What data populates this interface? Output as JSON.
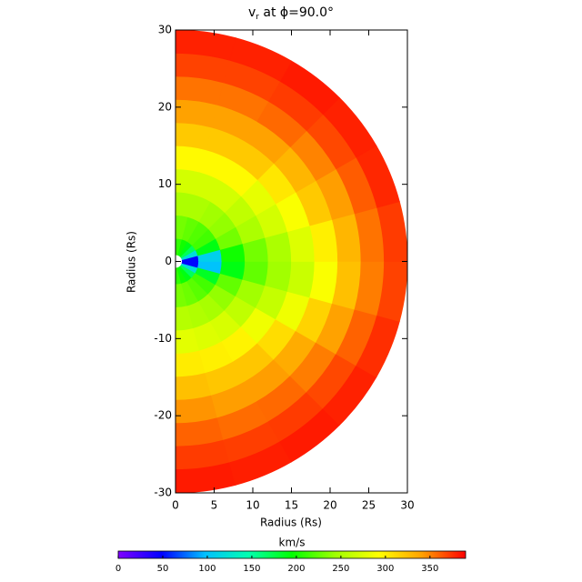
{
  "chart_data": {
    "type": "polar-heatmap",
    "title": {
      "text": "v",
      "subscript": "r",
      "rest": " at ϕ=90.0°"
    },
    "x_label": "Radius (Rs)",
    "y_label": "Radius (Rs)",
    "xlim": [
      0,
      30
    ],
    "xticks": [
      0,
      5,
      10,
      15,
      20,
      25,
      30
    ],
    "ylim": [
      -30,
      30
    ],
    "yticks": [
      -30,
      -20,
      -10,
      0,
      10,
      20,
      30
    ],
    "r_edges": [
      0,
      3,
      6,
      9,
      12,
      15,
      18,
      21,
      24,
      27,
      30
    ],
    "theta_edges": [
      -90,
      -75,
      -60,
      -45,
      -30,
      -15,
      0,
      15,
      30,
      45,
      60,
      75,
      90
    ],
    "values": [
      [
        210,
        232,
        255,
        278,
        302,
        325,
        345,
        360,
        372,
        382
      ],
      [
        200,
        228,
        252,
        275,
        300,
        322,
        342,
        357,
        371,
        381
      ],
      [
        190,
        222,
        248,
        272,
        298,
        322,
        342,
        358,
        372,
        382
      ],
      [
        170,
        215,
        240,
        260,
        285,
        310,
        335,
        352,
        368,
        380
      ],
      [
        120,
        185,
        225,
        245,
        262,
        285,
        315,
        340,
        360,
        376
      ],
      [
        50,
        100,
        190,
        225,
        245,
        265,
        290,
        325,
        352,
        370
      ],
      [
        50,
        110,
        200,
        230,
        250,
        275,
        300,
        330,
        355,
        372
      ],
      [
        120,
        190,
        230,
        250,
        270,
        290,
        320,
        342,
        362,
        378
      ],
      [
        170,
        215,
        240,
        260,
        280,
        305,
        330,
        350,
        368,
        380
      ],
      [
        190,
        220,
        245,
        270,
        295,
        320,
        340,
        358,
        372,
        382
      ],
      [
        200,
        225,
        250,
        270,
        295,
        320,
        340,
        355,
        370,
        380
      ],
      [
        210,
        230,
        250,
        270,
        295,
        320,
        340,
        355,
        370,
        380
      ]
    ],
    "colorbar": {
      "label": "km/s",
      "clim": [
        0,
        390
      ],
      "ticks": [
        0,
        50,
        100,
        150,
        200,
        250,
        300,
        350
      ],
      "colormap": [
        "#8000ff",
        "#0000ff",
        "#00c0ff",
        "#00ffb0",
        "#00ff00",
        "#a0ff00",
        "#ffff00",
        "#ffa000",
        "#ff0000"
      ]
    }
  }
}
